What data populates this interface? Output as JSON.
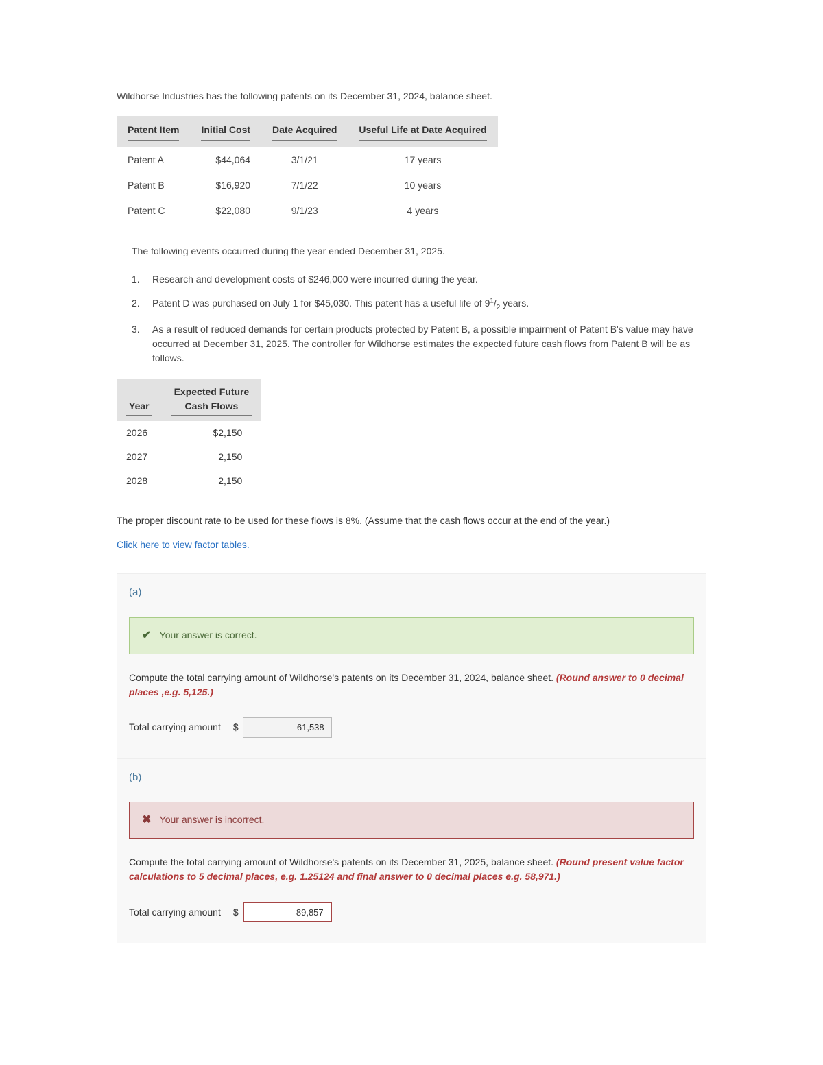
{
  "intro": "Wildhorse Industries has the following patents on its December 31, 2024, balance sheet.",
  "patents": {
    "headers": [
      "Patent Item",
      "Initial Cost",
      "Date Acquired",
      "Useful Life at Date Acquired"
    ],
    "rows": [
      {
        "item": "Patent A",
        "cost": "$44,064",
        "date": "3/1/21",
        "life": "17 years"
      },
      {
        "item": "Patent B",
        "cost": "$16,920",
        "date": "7/1/22",
        "life": "10 years"
      },
      {
        "item": "Patent C",
        "cost": "$22,080",
        "date": "9/1/23",
        "life": "4 years"
      }
    ]
  },
  "events_intro": "The following events occurred during the year ended December 31, 2025.",
  "events": [
    "Research and development costs of $246,000 were incurred during the year.",
    "Patent D was purchased on July 1 for $45,030. This patent has a useful life of 9",
    "As a result of reduced demands for certain products protected by Patent B, a possible impairment of Patent B's value may have occurred at December 31, 2025. The controller for Wildhorse estimates the expected future cash flows from Patent B will be as follows."
  ],
  "event2_suffix": " years.",
  "frac_num": "1",
  "frac_den": "2",
  "cashflows": {
    "headers": [
      "Year",
      "Expected Future\nCash Flows"
    ],
    "rows": [
      {
        "year": "2026",
        "flow": "$2,150"
      },
      {
        "year": "2027",
        "flow": "2,150"
      },
      {
        "year": "2028",
        "flow": "2,150"
      }
    ]
  },
  "discount_text": "The proper discount rate to be used for these flows is 8%. (Assume that the cash flows occur at the end of the year.)",
  "link_text": "Click here to view factor tables.",
  "part_a": {
    "label": "(a)",
    "alert": "Your answer is correct.",
    "question": "Compute the total carrying amount of Wildhorse's patents on its December 31, 2024, balance sheet. ",
    "hint": "(Round answer to 0 decimal places ,e.g. 5,125.)",
    "answer_label": "Total carrying amount",
    "currency": "$",
    "value": "61,538"
  },
  "part_b": {
    "label": "(b)",
    "alert": "Your answer is incorrect.",
    "question": "Compute the total carrying amount of Wildhorse's patents on its December 31, 2025, balance sheet. ",
    "hint": "(Round present value factor calculations to 5 decimal places, e.g. 1.25124 and final answer to 0 decimal places e.g. 58,971.)",
    "answer_label": "Total carrying amount",
    "currency": "$",
    "value": "89,857"
  }
}
